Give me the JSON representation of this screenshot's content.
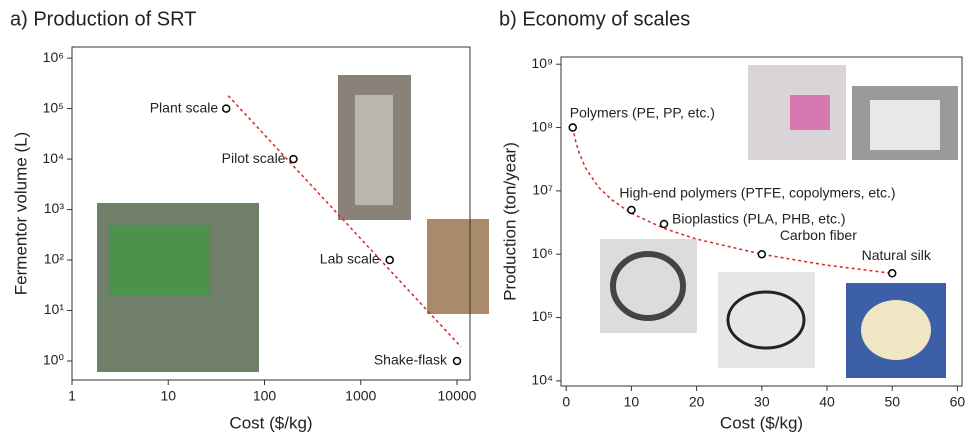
{
  "chart_data": [
    {
      "type": "scatter",
      "title": "a) Production of SRT",
      "xlabel": "Cost ($/kg)",
      "ylabel": "Fermentor volume (L)",
      "xscale": "log",
      "yscale": "log",
      "xlim": [
        1,
        13650
      ],
      "ylim": [
        0.42,
        1660000
      ],
      "xticks": [
        1,
        10,
        100,
        1000,
        10000
      ],
      "yticks": [
        {
          "value": 1,
          "label": "10⁰"
        },
        {
          "value": 10,
          "label": "10¹"
        },
        {
          "value": 100,
          "label": "10²"
        },
        {
          "value": 1000,
          "label": "10³"
        },
        {
          "value": 10000,
          "label": "10⁴"
        },
        {
          "value": 100000,
          "label": "10⁵"
        },
        {
          "value": 1000000,
          "label": "10⁶"
        }
      ],
      "x": [
        40,
        200,
        2000,
        10000
      ],
      "y": [
        100000,
        10000,
        100,
        1
      ],
      "point_labels": [
        "Plant scale",
        "Pilot scale",
        "Lab scale",
        "Shake-flask"
      ],
      "color": "#000000",
      "trend": {
        "color": "#d62728",
        "x": [
          42,
          11000
        ],
        "y": [
          180000,
          1.9
        ]
      }
    },
    {
      "type": "scatter",
      "title": "b) Economy of scales",
      "xlabel": "Cost ($/kg)",
      "ylabel": "Production (ton/year)",
      "xscale": "linear",
      "yscale": "log",
      "xlim": [
        -0.8,
        60.7
      ],
      "ylim": [
        8300,
        1300000000
      ],
      "xticks": [
        0,
        10,
        20,
        30,
        40,
        50,
        60
      ],
      "yticks": [
        {
          "value": 10000,
          "label": "10⁴"
        },
        {
          "value": 100000,
          "label": "10⁵"
        },
        {
          "value": 1000000,
          "label": "10⁶"
        },
        {
          "value": 10000000,
          "label": "10⁷"
        },
        {
          "value": 100000000,
          "label": "10⁸"
        },
        {
          "value": 1000000000,
          "label": "10⁹"
        }
      ],
      "x": [
        1,
        10,
        15,
        30,
        50
      ],
      "y": [
        100000000,
        5000000,
        3000000,
        1000000,
        500000
      ],
      "point_labels": [
        "Polymers (PE, PP, etc.)",
        "High-end polymers (PTFE, copolymers, etc.)",
        "Bioplastics (PLA, PHB, etc.)",
        "Carbon fiber",
        "Natural silk"
      ],
      "color": "#000000",
      "trend": {
        "color": "#d62728",
        "x": [
          1,
          1.5,
          2,
          3,
          5,
          7,
          10,
          15,
          20,
          30,
          40,
          50
        ],
        "y": [
          100000000,
          57800000,
          39200000,
          22600000,
          11300000,
          7200000,
          4430000,
          2560000,
          1730000,
          1000000,
          670000,
          500000
        ]
      }
    }
  ]
}
